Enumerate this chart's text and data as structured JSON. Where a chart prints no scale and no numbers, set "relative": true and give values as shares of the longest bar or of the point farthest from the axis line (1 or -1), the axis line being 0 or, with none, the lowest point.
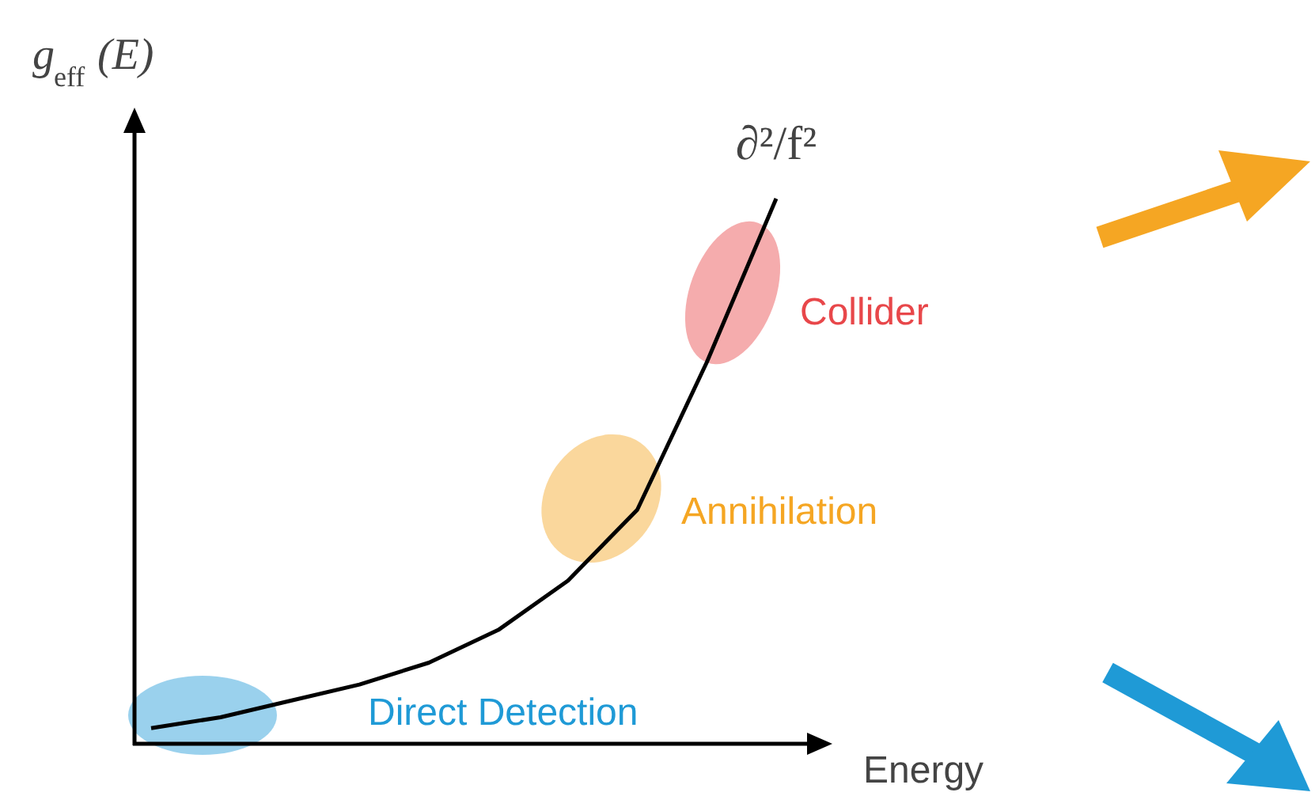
{
  "chart_data": {
    "type": "line",
    "relative": true,
    "xlabel": "Energy",
    "ylabel": "g$_{eff}$(E)",
    "categories": [
      null,
      null,
      null,
      null,
      null,
      null,
      null,
      null,
      null,
      null
    ],
    "series": [
      {
        "name": "∂²/f²",
        "color": "#000000",
        "values": [
          0.03,
          0.05,
          0.08,
          0.11,
          0.15,
          0.21,
          0.3,
          0.43,
          0.7,
          1.0
        ]
      }
    ],
    "annotations": [
      "Collider",
      "Annihilation",
      "Direct Detection"
    ],
    "grid": false,
    "marker": "none",
    "line_style": "solid"
  }
}
